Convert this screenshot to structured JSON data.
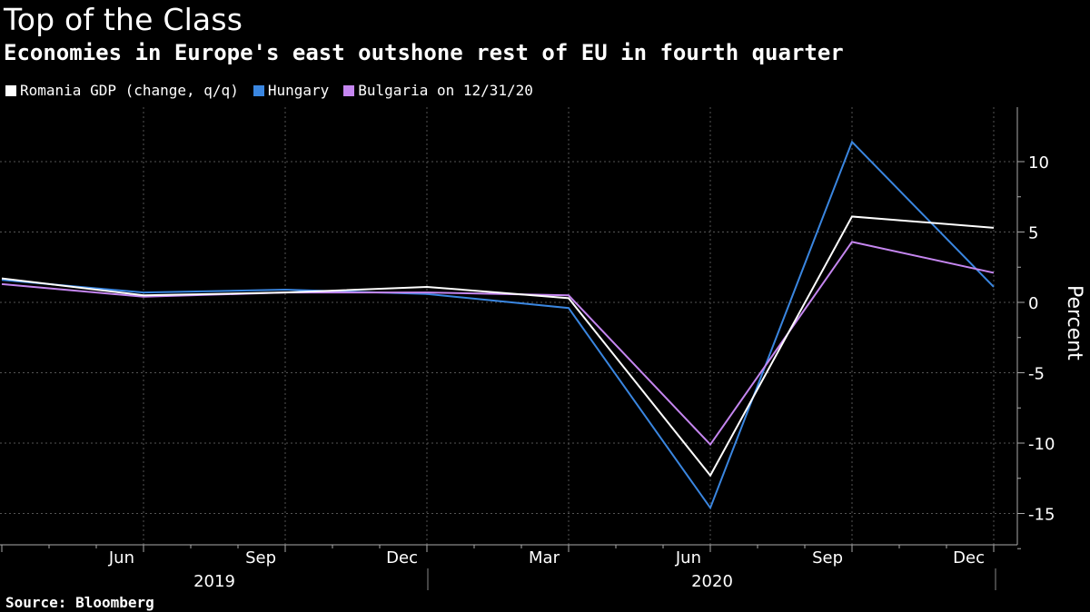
{
  "chart_data": {
    "type": "line",
    "title": "Top of the Class",
    "subtitle": "Economies in Europe's east outshone rest of EU in fourth quarter",
    "ylabel": "Percent",
    "source": "Source: Bloomberg",
    "x": [
      "2019-03",
      "2019-06",
      "2019-09",
      "2019-12",
      "2020-03",
      "2020-06",
      "2020-09",
      "2020-12"
    ],
    "month_ticks": [
      "Jun",
      "Sep",
      "Dec",
      "Mar",
      "Jun",
      "Sep",
      "Dec"
    ],
    "year_labels": [
      "2019",
      "2020"
    ],
    "yticks": [
      10,
      5,
      0,
      -5,
      -10,
      -15
    ],
    "ylim": [
      -17.5,
      12
    ],
    "grid": true,
    "legend_position": "top-left",
    "series": [
      {
        "name": "Romania GDP (change, q/q)",
        "color": "#ffffff",
        "values": [
          1.7,
          0.5,
          0.7,
          1.1,
          0.3,
          -12.3,
          6.1,
          5.3
        ]
      },
      {
        "name": "Hungary",
        "color": "#3a86e0",
        "values": [
          1.6,
          0.7,
          0.9,
          0.6,
          -0.4,
          -14.6,
          11.4,
          1.1
        ]
      },
      {
        "name": "Bulgaria on 12/31/20",
        "color": "#c586f0",
        "values": [
          1.3,
          0.4,
          0.7,
          0.7,
          0.5,
          -10.1,
          4.3,
          2.1
        ]
      }
    ]
  }
}
